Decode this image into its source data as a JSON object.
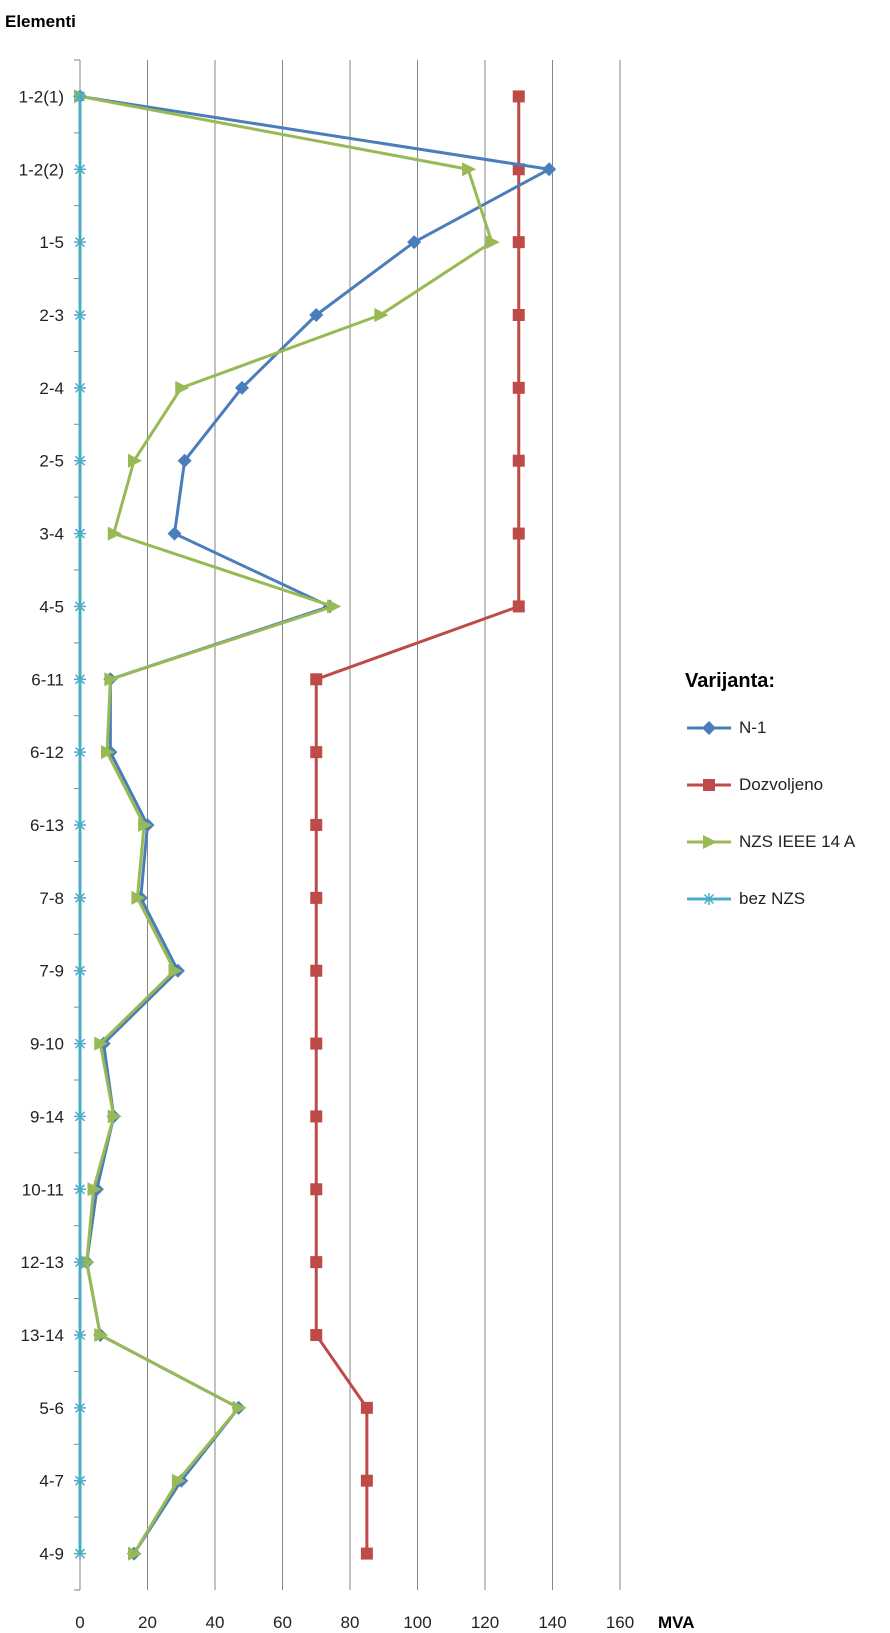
{
  "chart_data": {
    "type": "line",
    "orientation": "horizontal",
    "ylabel": "Elementi",
    "xlabel": "MVA",
    "xlim": [
      0,
      160
    ],
    "xticks": [
      0,
      20,
      40,
      60,
      80,
      100,
      120,
      140,
      160
    ],
    "grid": "vertical",
    "categories": [
      "1-2(1)",
      "1-2(2)",
      "1-5",
      "2-3",
      "2-4",
      "2-5",
      "3-4",
      "4-5",
      "6-11",
      "6-12",
      "6-13",
      "7-8",
      "7-9",
      "9-10",
      "9-14",
      "10-11",
      "12-13",
      "13-14",
      "5-6",
      "4-7",
      "4-9"
    ],
    "legend": {
      "title": "Varijanta:",
      "position": "right"
    },
    "series": [
      {
        "name": "N-1",
        "color": "#4a7ebb",
        "marker": "diamond",
        "values": [
          0,
          139,
          99,
          70,
          48,
          31,
          28,
          74,
          9,
          9,
          20,
          18,
          29,
          7,
          10,
          5,
          2,
          6,
          47,
          30,
          16
        ]
      },
      {
        "name": "Dozvoljeno",
        "color": "#be4b48",
        "marker": "square",
        "values": [
          130,
          130,
          130,
          130,
          130,
          130,
          130,
          130,
          70,
          70,
          70,
          70,
          70,
          70,
          70,
          70,
          70,
          70,
          85,
          85,
          85
        ]
      },
      {
        "name": "NZS IEEE 14 A",
        "color": "#98b954",
        "marker": "triangle",
        "values": [
          0,
          115,
          122,
          89,
          30,
          16,
          10,
          75,
          9,
          8,
          19,
          17,
          28,
          6,
          10,
          4,
          2,
          6,
          47,
          29,
          16
        ]
      },
      {
        "name": "bez NZS",
        "color": "#4bacc6",
        "marker": "asterisk",
        "values": [
          0,
          0,
          0,
          0,
          0,
          0,
          0,
          0,
          0,
          0,
          0,
          0,
          0,
          0,
          0,
          0,
          0,
          0,
          0,
          0,
          0
        ]
      }
    ]
  }
}
